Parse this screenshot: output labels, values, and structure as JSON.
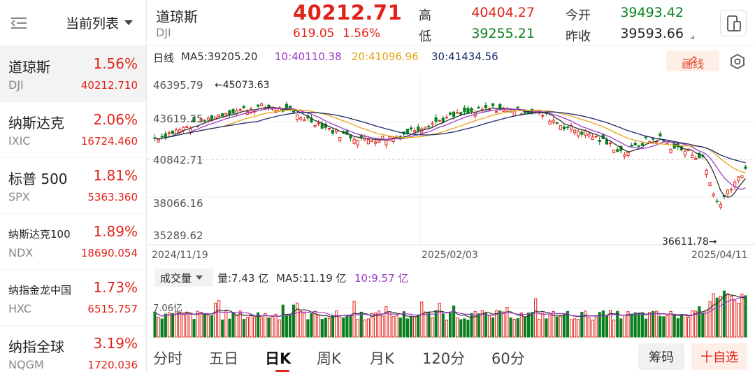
{
  "colors": {
    "up": "#e2231a",
    "down": "#0a7f1f",
    "ma5": "#333333",
    "ma10": "#9b3bc6",
    "ma20": "#e8a417",
    "ma30": "#1f2a6b"
  },
  "sidebar": {
    "title": "当前列表",
    "items": [
      {
        "name": "道琼斯",
        "code": "DJI",
        "pct": "1.56%",
        "price": "40212.710",
        "active": true
      },
      {
        "name": "纳斯达克",
        "code": "IXIC",
        "pct": "2.06%",
        "price": "16724.460"
      },
      {
        "name": "标普 500",
        "code": "SPX",
        "pct": "1.81%",
        "price": "5363.360"
      },
      {
        "name": "纳斯达克100",
        "code": "NDX",
        "pct": "1.89%",
        "price": "18690.054",
        "small": true
      },
      {
        "name": "纳指金龙中国",
        "code": "HXC",
        "pct": "1.73%",
        "price": "6515.757",
        "small": true
      },
      {
        "name": "纳指全球",
        "code": "NQGM",
        "pct": "3.19%",
        "price": "1720.036"
      }
    ]
  },
  "header": {
    "name": "道琼斯",
    "code": "DJI",
    "price": "40212.71",
    "change": "619.05",
    "change_pct": "1.56%",
    "high_label": "高",
    "high": "40404.27",
    "low_label": "低",
    "low": "39255.21",
    "open_label": "今开",
    "open": "39493.42",
    "prev_label": "昨收",
    "prev": "39593.66"
  },
  "indicators": {
    "period": "日线",
    "ma5": "MA5:39205.20",
    "ma10": "10:40110.38",
    "ma20": "20:41096.96",
    "ma30": "30:41434.56",
    "draw_label": "画线"
  },
  "chart_data": {
    "type": "candlestick",
    "y_ticks": [
      "46395.79",
      "43619.25",
      "40842.71",
      "38066.16",
      "35289.62"
    ],
    "x_ticks": [
      "2024/11/19",
      "2025/02/03",
      "2025/04/11"
    ],
    "max_note": "←45073.63",
    "min_note": "36611.78→",
    "ylim": [
      35289.62,
      46395.79
    ]
  },
  "volume": {
    "selector": "成交量",
    "vol": "量:7.43 亿",
    "ma5": "MA5:11.19 亿",
    "ma10": "10:9.57 亿",
    "tick": "7.06亿"
  },
  "tabs": [
    "分时",
    "五日",
    "日K",
    "周K",
    "月K",
    "120分",
    "60分"
  ],
  "active_tab": "日K",
  "buttons": {
    "chips": "筹码",
    "add_fav": "十自选"
  }
}
